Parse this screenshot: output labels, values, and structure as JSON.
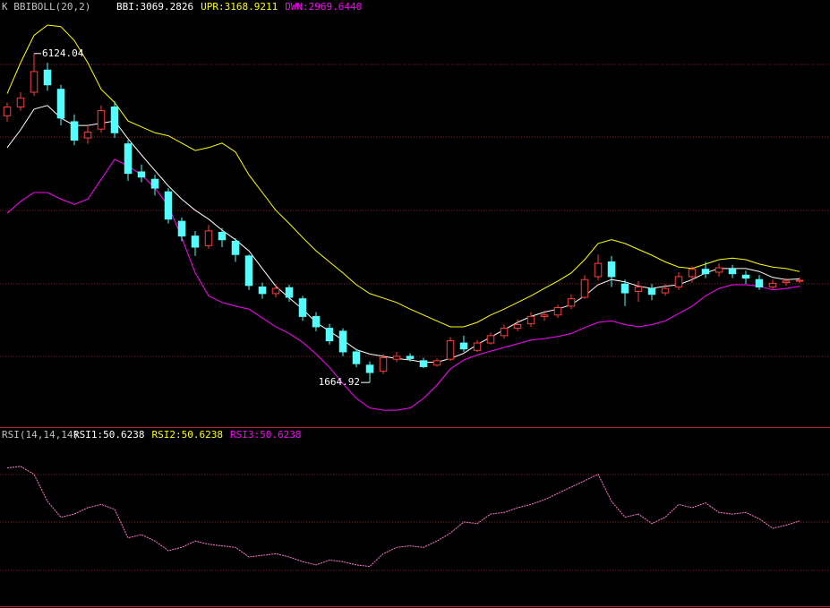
{
  "chart_data": [
    {
      "type": "candlestick",
      "header": "K  BBIBOLL(20,2)",
      "header_labels": [
        "BBI:3069.2826",
        "UPR:3168.9211",
        "DWN:2969.6440"
      ],
      "up_color": "#ff3c3c",
      "down_color": "#54fcfc",
      "open": [
        5280,
        5400,
        5600,
        5900,
        5640,
        5200,
        4980,
        5100,
        5400,
        4900,
        4520,
        4420,
        4250,
        3850,
        3650,
        3520,
        3700,
        3580,
        3380,
        2960,
        2870,
        2950,
        2800,
        2560,
        2400,
        2360,
        2080,
        1900,
        1820,
        1980,
        2020,
        1960,
        1900,
        1980,
        2200,
        2100,
        2200,
        2300,
        2400,
        2460,
        2560,
        2580,
        2700,
        2820,
        3100,
        3300,
        3000,
        2900,
        2940,
        2880,
        2960,
        3100,
        3200,
        3160,
        3200,
        3120,
        3060,
        2960,
        3020,
        3040
      ],
      "high": [
        5460,
        5600,
        6124.04,
        6000,
        5700,
        5300,
        5150,
        5420,
        5480,
        4950,
        4620,
        4480,
        4300,
        3900,
        3720,
        3800,
        3760,
        3620,
        3400,
        3020,
        3000,
        2990,
        2840,
        2620,
        2460,
        2400,
        2120,
        1950,
        2050,
        2080,
        2060,
        2000,
        1990,
        2280,
        2300,
        2240,
        2340,
        2450,
        2520,
        2620,
        2640,
        2720,
        2860,
        3120,
        3400,
        3380,
        3060,
        3040,
        3000,
        3000,
        3160,
        3240,
        3300,
        3280,
        3260,
        3180,
        3120,
        3060,
        3080,
        3090
      ],
      "low": [
        5200,
        5350,
        5550,
        5620,
        5150,
        4880,
        4900,
        5050,
        4980,
        4400,
        4380,
        4200,
        3820,
        3580,
        3380,
        3480,
        3500,
        3300,
        2920,
        2800,
        2820,
        2760,
        2500,
        2360,
        2180,
        2020,
        1870,
        1664.92,
        1780,
        1940,
        1950,
        1860,
        1880,
        1960,
        2080,
        2080,
        2180,
        2260,
        2360,
        2420,
        2500,
        2540,
        2660,
        2800,
        3050,
        2960,
        2700,
        2760,
        2780,
        2840,
        2920,
        3020,
        3080,
        3100,
        3080,
        3000,
        2920,
        2930,
        2980,
        3010
      ],
      "close": [
        5400,
        5520,
        5880,
        5700,
        5250,
        4950,
        5060,
        5350,
        5050,
        4500,
        4450,
        4300,
        3880,
        3650,
        3500,
        3720,
        3600,
        3400,
        2980,
        2870,
        2940,
        2820,
        2560,
        2420,
        2230,
        2080,
        1920,
        1800,
        2000,
        2020,
        1990,
        1880,
        1960,
        2230,
        2120,
        2200,
        2300,
        2400,
        2450,
        2560,
        2580,
        2680,
        2800,
        3060,
        3280,
        3100,
        2880,
        2960,
        2860,
        2940,
        3100,
        3200,
        3140,
        3220,
        3140,
        3080,
        2960,
        3010,
        3040,
        3050
      ],
      "series": [
        {
          "color": "#ffffff",
          "values": [
            4848,
            5090,
            5370,
            5420,
            5250,
            5150,
            5150,
            5180,
            5210,
            4970,
            4750,
            4540,
            4330,
            4150,
            4000,
            3880,
            3730,
            3600,
            3450,
            3210,
            2970,
            2810,
            2660,
            2480,
            2360,
            2240,
            2110,
            2050,
            2020,
            1990,
            1970,
            1940,
            1940,
            1990,
            2060,
            2180,
            2280,
            2380,
            2480,
            2560,
            2620,
            2660,
            2720,
            2840,
            2990,
            3060,
            3030,
            2970,
            2940,
            2970,
            2990,
            3060,
            3150,
            3210,
            3210,
            3210,
            3170,
            3090,
            3060,
            3069.2826
          ]
        },
        {
          "color": "#ffff00",
          "values": [
            5580,
            6000,
            6370,
            6510,
            6490,
            6300,
            6000,
            5640,
            5460,
            5210,
            5130,
            5050,
            5010,
            4910,
            4810,
            4850,
            4910,
            4790,
            4480,
            4240,
            4000,
            3820,
            3630,
            3450,
            3300,
            3150,
            2990,
            2870,
            2810,
            2750,
            2660,
            2580,
            2500,
            2420,
            2420,
            2480,
            2580,
            2660,
            2750,
            2840,
            2940,
            3040,
            3150,
            3330,
            3550,
            3600,
            3550,
            3470,
            3390,
            3300,
            3230,
            3210,
            3270,
            3330,
            3350,
            3330,
            3270,
            3230,
            3210,
            3168.9211
          ]
        },
        {
          "color": "#ff00ff",
          "values": [
            3960,
            4120,
            4240,
            4240,
            4150,
            4080,
            4150,
            4420,
            4690,
            4600,
            4480,
            4300,
            4060,
            3630,
            3150,
            2840,
            2750,
            2700,
            2660,
            2540,
            2420,
            2330,
            2210,
            2050,
            1870,
            1650,
            1450,
            1320,
            1290,
            1290,
            1320,
            1450,
            1630,
            1850,
            1970,
            2040,
            2090,
            2140,
            2190,
            2240,
            2260,
            2290,
            2330,
            2410,
            2480,
            2500,
            2450,
            2420,
            2450,
            2500,
            2600,
            2700,
            2840,
            2940,
            2990,
            2990,
            2970,
            2920,
            2940,
            2969.644
          ]
        }
      ],
      "ylim": [
        1060,
        6850
      ]
    },
    {
      "type": "line",
      "header": "RSI(14,14,14)",
      "header_labels": [
        "RSI1:50.6238",
        "RSI2:50.6238",
        "RSI3:50.6238"
      ],
      "series": [
        {
          "color": "#ff7ad0",
          "values": [
            84,
            85,
            80,
            63,
            53,
            55,
            59,
            61,
            58,
            40,
            42,
            38,
            32,
            34,
            38,
            36,
            35,
            34,
            28,
            29,
            30,
            28,
            25,
            23,
            26,
            25,
            23,
            22,
            30,
            34,
            35,
            34,
            38,
            43,
            50,
            49,
            55,
            56,
            59,
            61,
            64,
            68,
            72,
            76,
            80,
            63,
            53,
            55,
            49,
            53,
            61,
            59,
            62,
            56,
            55,
            56,
            52,
            46,
            48,
            50.6238
          ]
        }
      ],
      "ylim": [
        -3,
        108
      ]
    }
  ]
}
